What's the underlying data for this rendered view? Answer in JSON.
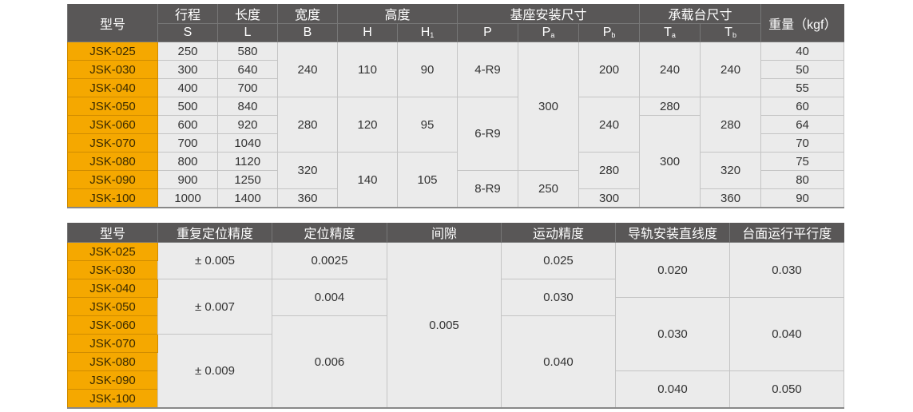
{
  "colors": {
    "header_bg": "#595757",
    "model_bg": "#f5a800",
    "cell_bg": "#ebebeb"
  },
  "models": [
    "JSK-025",
    "JSK-030",
    "JSK-040",
    "JSK-050",
    "JSK-060",
    "JSK-070",
    "JSK-080",
    "JSK-090",
    "JSK-100"
  ],
  "table1": {
    "headers": {
      "model": "型号",
      "stroke": "行程",
      "length": "长度",
      "width": "宽度",
      "height": "高度",
      "base_mount": "基座安装尺寸",
      "table_size": "承载台尺寸",
      "weight": "重量（kgf）",
      "S": "S",
      "L": "L",
      "B": "B",
      "H": "H",
      "H1": {
        "base": "H",
        "sub": "1"
      },
      "P": "P",
      "Pa": {
        "base": "P",
        "sub": "a"
      },
      "Pb": {
        "base": "P",
        "sub": "b"
      },
      "Ta": {
        "base": "T",
        "sub": "a"
      },
      "Tb": {
        "base": "T",
        "sub": "b"
      }
    },
    "columns": [
      [
        {
          "v": "250",
          "span": 1
        },
        {
          "v": "300",
          "span": 1
        },
        {
          "v": "400",
          "span": 1
        },
        {
          "v": "500",
          "span": 1
        },
        {
          "v": "600",
          "span": 1
        },
        {
          "v": "700",
          "span": 1
        },
        {
          "v": "800",
          "span": 1
        },
        {
          "v": "900",
          "span": 1
        },
        {
          "v": "1000",
          "span": 1
        }
      ],
      [
        {
          "v": "580",
          "span": 1
        },
        {
          "v": "640",
          "span": 1
        },
        {
          "v": "700",
          "span": 1
        },
        {
          "v": "840",
          "span": 1
        },
        {
          "v": "920",
          "span": 1
        },
        {
          "v": "1040",
          "span": 1
        },
        {
          "v": "1120",
          "span": 1
        },
        {
          "v": "1250",
          "span": 1
        },
        {
          "v": "1400",
          "span": 1
        }
      ],
      [
        {
          "v": "240",
          "span": 3
        },
        {
          "v": "280",
          "span": 3
        },
        {
          "v": "320",
          "span": 2
        },
        {
          "v": "360",
          "span": 1
        }
      ],
      [
        {
          "v": "110",
          "span": 3
        },
        {
          "v": "120",
          "span": 3
        },
        {
          "v": "140",
          "span": 3
        }
      ],
      [
        {
          "v": "90",
          "span": 3
        },
        {
          "v": "95",
          "span": 3
        },
        {
          "v": "105",
          "span": 3
        }
      ],
      [
        {
          "v": "4-R9",
          "span": 3
        },
        {
          "v": "6-R9",
          "span": 4
        },
        {
          "v": "8-R9",
          "span": 2
        }
      ],
      [
        {
          "v": "300",
          "span": 7
        },
        {
          "v": "250",
          "span": 2
        }
      ],
      [
        {
          "v": "200",
          "span": 3
        },
        {
          "v": "240",
          "span": 3
        },
        {
          "v": "280",
          "span": 2
        },
        {
          "v": "300",
          "span": 1
        }
      ],
      [
        {
          "v": "240",
          "span": 3
        },
        {
          "v": "280",
          "span": 1
        },
        {
          "v": "300",
          "span": 5
        }
      ],
      [
        {
          "v": "240",
          "span": 3
        },
        {
          "v": "280",
          "span": 3
        },
        {
          "v": "320",
          "span": 2
        },
        {
          "v": "360",
          "span": 1
        }
      ],
      [
        {
          "v": "40",
          "span": 1
        },
        {
          "v": "50",
          "span": 1
        },
        {
          "v": "55",
          "span": 1
        },
        {
          "v": "60",
          "span": 1
        },
        {
          "v": "64",
          "span": 1
        },
        {
          "v": "70",
          "span": 1
        },
        {
          "v": "75",
          "span": 1
        },
        {
          "v": "80",
          "span": 1
        },
        {
          "v": "90",
          "span": 1
        }
      ]
    ]
  },
  "table2": {
    "headers": [
      "型号",
      "重复定位精度",
      "定位精度",
      "间隙",
      "运动精度",
      "导轨安装直线度",
      "台面运行平行度"
    ],
    "columns": [
      [
        {
          "v": "± 0.005",
          "span": 2
        },
        {
          "v": "± 0.007",
          "span": 3
        },
        {
          "v": "± 0.009",
          "span": 4
        }
      ],
      [
        {
          "v": "0.0025",
          "span": 2
        },
        {
          "v": "0.004",
          "span": 2
        },
        {
          "v": "0.006",
          "span": 5
        }
      ],
      [
        {
          "v": "0.005",
          "span": 9
        }
      ],
      [
        {
          "v": "0.025",
          "span": 2
        },
        {
          "v": "0.030",
          "span": 2
        },
        {
          "v": "0.040",
          "span": 5
        }
      ],
      [
        {
          "v": "0.020",
          "span": 3
        },
        {
          "v": "0.030",
          "span": 4
        },
        {
          "v": "0.040",
          "span": 2
        }
      ],
      [
        {
          "v": "0.030",
          "span": 3
        },
        {
          "v": "0.040",
          "span": 4
        },
        {
          "v": "0.050",
          "span": 2
        }
      ]
    ]
  }
}
